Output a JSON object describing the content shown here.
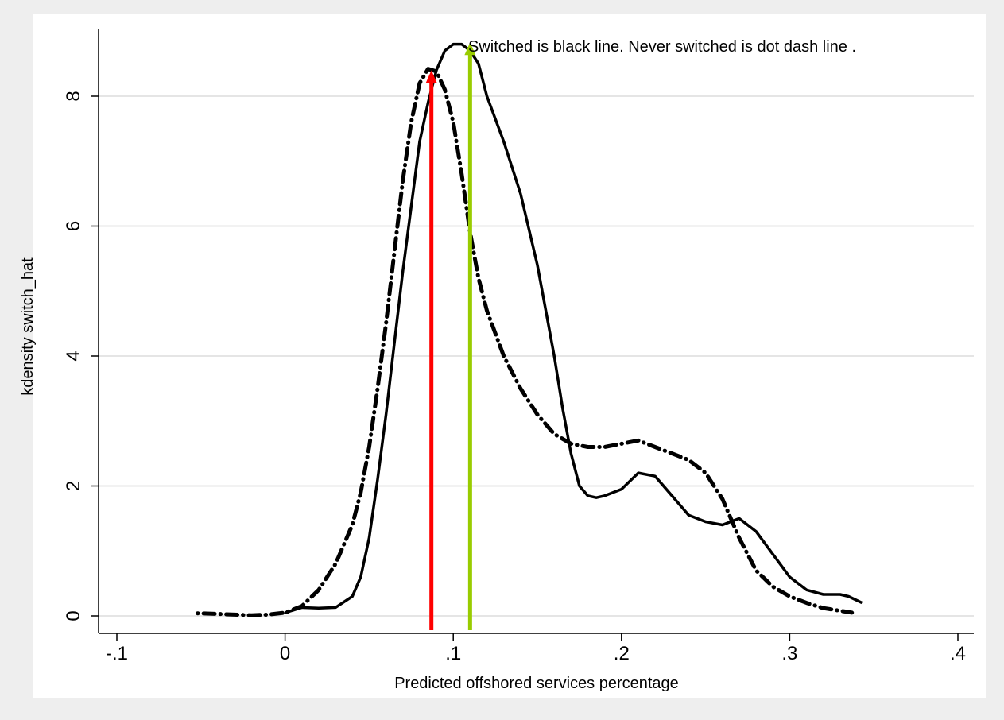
{
  "chart_data": {
    "type": "line",
    "xlabel": "Predicted offshored services percentage",
    "ylabel": "kdensity switch_hat",
    "xlim": [
      -0.1,
      0.4
    ],
    "ylim": [
      0,
      8.8
    ],
    "x_ticks": [
      -0.1,
      0,
      0.1,
      0.2,
      0.3,
      0.4
    ],
    "x_tick_labels": [
      "-.1",
      "0",
      ".1",
      ".2",
      ".3",
      ".4"
    ],
    "y_ticks": [
      0,
      2,
      4,
      6,
      8
    ],
    "y_tick_labels": [
      "0",
      "2",
      "4",
      "6",
      "8"
    ],
    "grid": "horizontal",
    "annotation": "Switched is black line. Never switched is dot dash line .",
    "series": [
      {
        "name": "Switched",
        "style": "solid",
        "color": "#000000",
        "x": [
          0.0,
          0.01,
          0.02,
          0.03,
          0.04,
          0.045,
          0.05,
          0.055,
          0.06,
          0.065,
          0.07,
          0.075,
          0.08,
          0.085,
          0.09,
          0.095,
          0.1,
          0.105,
          0.11,
          0.115,
          0.12,
          0.13,
          0.14,
          0.15,
          0.16,
          0.165,
          0.17,
          0.175,
          0.18,
          0.185,
          0.19,
          0.2,
          0.21,
          0.22,
          0.23,
          0.24,
          0.25,
          0.26,
          0.27,
          0.28,
          0.29,
          0.3,
          0.31,
          0.32,
          0.33,
          0.335,
          0.343
        ],
        "y": [
          0.05,
          0.13,
          0.12,
          0.13,
          0.3,
          0.6,
          1.2,
          2.1,
          3.1,
          4.2,
          5.3,
          6.3,
          7.3,
          7.9,
          8.4,
          8.7,
          8.8,
          8.8,
          8.7,
          8.5,
          8.0,
          7.3,
          6.5,
          5.4,
          4.0,
          3.2,
          2.5,
          2.0,
          1.85,
          1.82,
          1.85,
          1.95,
          2.2,
          2.15,
          1.85,
          1.55,
          1.45,
          1.4,
          1.5,
          1.3,
          0.95,
          0.6,
          0.4,
          0.33,
          0.33,
          0.3,
          0.2
        ]
      },
      {
        "name": "Never switched",
        "style": "dot-dash",
        "color": "#000000",
        "x": [
          -0.052,
          -0.04,
          -0.03,
          -0.02,
          -0.01,
          0.0,
          0.01,
          0.02,
          0.03,
          0.04,
          0.045,
          0.05,
          0.055,
          0.06,
          0.065,
          0.07,
          0.075,
          0.08,
          0.085,
          0.09,
          0.095,
          0.1,
          0.105,
          0.11,
          0.115,
          0.12,
          0.13,
          0.14,
          0.15,
          0.16,
          0.17,
          0.18,
          0.19,
          0.2,
          0.21,
          0.22,
          0.23,
          0.24,
          0.25,
          0.26,
          0.27,
          0.28,
          0.29,
          0.3,
          0.31,
          0.32,
          0.33,
          0.337
        ],
        "y": [
          0.04,
          0.03,
          0.02,
          0.01,
          0.02,
          0.05,
          0.15,
          0.4,
          0.8,
          1.4,
          1.9,
          2.6,
          3.5,
          4.5,
          5.6,
          6.7,
          7.6,
          8.2,
          8.42,
          8.38,
          8.1,
          7.6,
          6.8,
          5.9,
          5.2,
          4.7,
          4.0,
          3.5,
          3.1,
          2.8,
          2.65,
          2.6,
          2.6,
          2.65,
          2.7,
          2.6,
          2.5,
          2.4,
          2.2,
          1.8,
          1.2,
          0.7,
          0.45,
          0.3,
          0.2,
          0.12,
          0.08,
          0.05
        ]
      }
    ],
    "vertical_markers": [
      {
        "x": 0.087,
        "y_top": 8.35,
        "color": "#ff0000"
      },
      {
        "x": 0.11,
        "y_top": 8.78,
        "color": "#99cc00"
      }
    ]
  }
}
